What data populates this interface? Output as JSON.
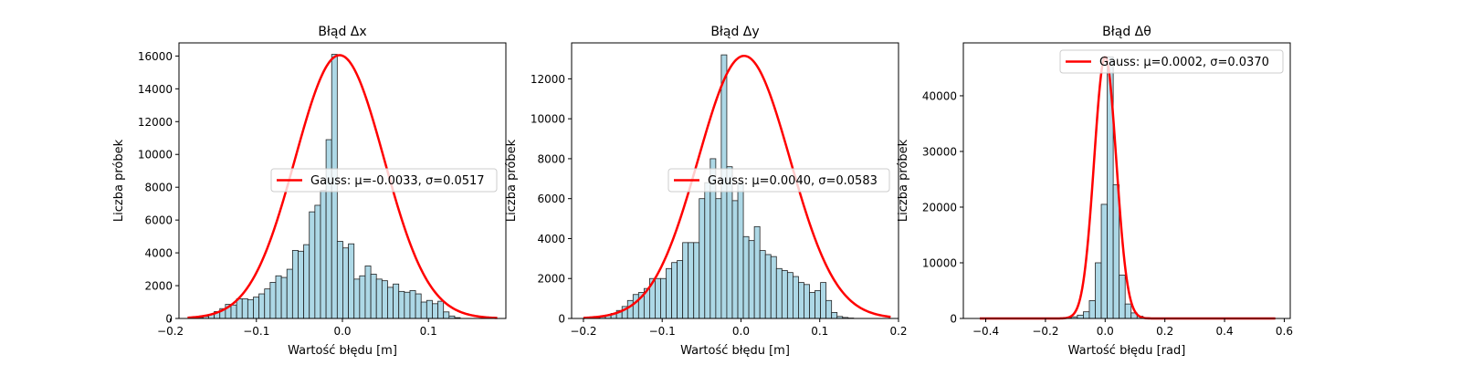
{
  "chart_data": [
    {
      "type": "bar",
      "title": "Błąd Δx",
      "xlabel": "Wartość błędu [m]",
      "ylabel": "Liczba próbek",
      "xlim": [
        -0.19,
        0.19
      ],
      "ylim": [
        0,
        16800
      ],
      "xticks": [
        -0.2,
        -0.1,
        0.0,
        0.1
      ],
      "xtick_labels": [
        "−0.2",
        "−0.1",
        "0.0",
        "0.1"
      ],
      "yticks": [
        0,
        2000,
        4000,
        6000,
        8000,
        10000,
        12000,
        14000,
        16000
      ],
      "ytick_labels": [
        "0",
        "2000",
        "4000",
        "6000",
        "8000",
        "10000",
        "12000",
        "14000",
        "16000"
      ],
      "hist_edges": [
        -0.175,
        -0.1685,
        -0.162,
        -0.1555,
        -0.149,
        -0.1425,
        -0.136,
        -0.1295,
        -0.123,
        -0.1165,
        -0.11,
        -0.1035,
        -0.097,
        -0.0905,
        -0.084,
        -0.0775,
        -0.071,
        -0.0645,
        -0.058,
        -0.0515,
        -0.045,
        -0.0385,
        -0.032,
        -0.0255,
        -0.019,
        -0.0125,
        -0.006,
        0.0005,
        0.007,
        0.0135,
        0.02,
        0.0265,
        0.033,
        0.0395,
        0.046,
        0.0525,
        0.059,
        0.0655,
        0.072,
        0.0785,
        0.085,
        0.0915,
        0.098,
        0.1045,
        0.111,
        0.1175,
        0.124,
        0.1305,
        0.137
      ],
      "hist_counts": [
        20,
        60,
        120,
        250,
        420,
        600,
        860,
        820,
        1200,
        1200,
        1150,
        1300,
        1500,
        1800,
        2200,
        2600,
        2500,
        3000,
        4150,
        4100,
        4500,
        6500,
        6900,
        7800,
        10900,
        16100,
        4700,
        4300,
        4550,
        2400,
        2600,
        3200,
        2700,
        2400,
        2300,
        1900,
        2100,
        1650,
        1600,
        1700,
        1500,
        1000,
        1100,
        900,
        1050,
        400,
        150,
        50
      ],
      "gauss": {
        "label": "Gauss: μ=-0.0033, σ=0.0517",
        "mu": -0.0033,
        "sigma": 0.0517,
        "peak": 16050,
        "xrange": [
          -0.18,
          0.18
        ]
      },
      "legend_position": "center-right"
    },
    {
      "type": "bar",
      "title": "Błąd Δy",
      "xlabel": "Wartość błędu [m]",
      "ylabel": "Liczba próbek",
      "xlim": [
        -0.215,
        0.2
      ],
      "ylim": [
        0,
        13800
      ],
      "xticks": [
        -0.2,
        -0.1,
        0.0,
        0.1,
        0.2
      ],
      "xtick_labels": [
        "−0.2",
        "−0.1",
        "0.0",
        "0.1",
        "0.2"
      ],
      "yticks": [
        0,
        2000,
        4000,
        6000,
        8000,
        10000,
        12000
      ],
      "ytick_labels": [
        "0",
        "2000",
        "4000",
        "6000",
        "8000",
        "10000",
        "12000"
      ],
      "hist_edges": [
        -0.2,
        -0.193,
        -0.186,
        -0.179,
        -0.172,
        -0.165,
        -0.158,
        -0.151,
        -0.144,
        -0.137,
        -0.13,
        -0.123,
        -0.116,
        -0.109,
        -0.102,
        -0.095,
        -0.088,
        -0.081,
        -0.074,
        -0.067,
        -0.06,
        -0.053,
        -0.046,
        -0.039,
        -0.032,
        -0.025,
        -0.018,
        -0.011,
        -0.004,
        0.003,
        0.01,
        0.017,
        0.024,
        0.031,
        0.038,
        0.045,
        0.052,
        0.059,
        0.066,
        0.073,
        0.08,
        0.087,
        0.094,
        0.101,
        0.108,
        0.115,
        0.122,
        0.129,
        0.136,
        0.143
      ],
      "hist_counts": [
        10,
        20,
        40,
        80,
        150,
        250,
        400,
        600,
        900,
        1200,
        1300,
        1500,
        2000,
        2000,
        2000,
        2500,
        2800,
        2900,
        3800,
        3800,
        3800,
        6000,
        6800,
        8000,
        6000,
        13200,
        7600,
        5900,
        6800,
        4100,
        3900,
        4600,
        3400,
        3200,
        3100,
        2500,
        2400,
        2300,
        2100,
        1800,
        1700,
        1300,
        1400,
        1800,
        900,
        300,
        100,
        50,
        20
      ],
      "gauss": {
        "label": "Gauss: μ=0.0040, σ=0.0583",
        "mu": 0.004,
        "sigma": 0.0583,
        "peak": 13150,
        "xrange": [
          -0.2,
          0.19
        ]
      },
      "legend_position": "center-right"
    },
    {
      "type": "bar",
      "title": "Błąd Δθ",
      "xlabel": "Wartość błędu [rad]",
      "ylabel": "Liczba próbek",
      "xlim": [
        -0.475,
        0.62
      ],
      "ylim": [
        0,
        49500
      ],
      "xticks": [
        -0.4,
        -0.2,
        0.0,
        0.2,
        0.4,
        0.6
      ],
      "xtick_labels": [
        "−0.4",
        "−0.2",
        "0.0",
        "0.2",
        "0.4",
        "0.6"
      ],
      "yticks": [
        0,
        10000,
        20000,
        30000,
        40000
      ],
      "ytick_labels": [
        "0",
        "10000",
        "20000",
        "30000",
        "40000"
      ],
      "hist_edges": [
        -0.133,
        -0.113,
        -0.093,
        -0.073,
        -0.053,
        -0.033,
        -0.013,
        0.007,
        0.027,
        0.047,
        0.067,
        0.087,
        0.107,
        0.127,
        0.147
      ],
      "hist_counts": [
        100,
        300,
        600,
        1200,
        3200,
        10000,
        20500,
        47000,
        24000,
        7800,
        2600,
        1000,
        400,
        150
      ],
      "gauss": {
        "label": "Gauss: μ=0.0002, σ=0.0370",
        "mu": 0.0002,
        "sigma": 0.037,
        "peak": 47000,
        "xrange": [
          -0.42,
          0.57
        ]
      },
      "legend_position": "top-right"
    }
  ],
  "colors": {
    "bar_fill": "#add8e6",
    "bar_edge": "#222222",
    "gauss_line": "#ff0000",
    "legend_border": "#cccccc"
  }
}
